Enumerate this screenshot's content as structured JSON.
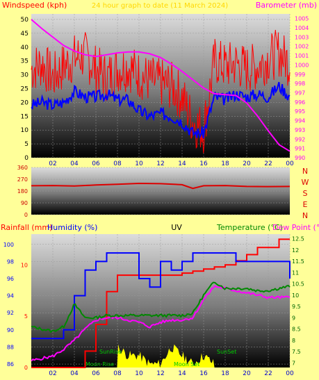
{
  "colors": {
    "background": "#ffff99",
    "wind_gust": "#ff0000",
    "wind_avg": "#0000ff",
    "barometer": "#ff00ff",
    "direction": "#dd0000",
    "rainfall": "#ff0000",
    "humidity": "#0000ff",
    "temperature": "#ff00ff",
    "dewpoint": "#008800",
    "uv": "#ffff00",
    "axis_text": "#0000cc"
  },
  "chart_data": [
    {
      "type": "line",
      "name": "wind-barometer",
      "title": "24 hour graph to date (11 March 2024)",
      "ylabel_left": "Windspeed (kph)",
      "ylabel_right": "Barometer (mb)",
      "x_ticks": [
        "02",
        "04",
        "06",
        "08",
        "10",
        "12",
        "14",
        "16",
        "18",
        "20",
        "22",
        "00"
      ],
      "y_left_ticks": [
        0,
        5,
        10,
        15,
        20,
        25,
        30,
        35,
        40,
        45,
        50
      ],
      "y_left_range": [
        0,
        52
      ],
      "y_right_ticks": [
        990,
        991,
        992,
        993,
        994,
        995,
        996,
        997,
        998,
        999,
        1000,
        1001,
        1002,
        1003,
        1004,
        1005
      ],
      "y_right_range": [
        990,
        1005.5
      ],
      "x_hours": [
        0,
        1,
        2,
        3,
        4,
        5,
        6,
        7,
        8,
        9,
        10,
        11,
        12,
        13,
        14,
        15,
        16,
        17,
        18,
        19,
        20,
        21,
        22,
        23,
        24
      ],
      "series": [
        {
          "key": "gust",
          "axis": "left",
          "values": [
            32,
            34,
            29,
            33,
            36,
            37,
            32,
            29,
            32,
            33,
            30,
            28,
            27,
            26,
            22,
            13,
            10,
            35,
            33,
            34,
            32,
            33,
            36,
            38,
            34
          ]
        },
        {
          "key": "avg",
          "axis": "left",
          "values": [
            19,
            20,
            19,
            20,
            24,
            22,
            22,
            23,
            21,
            21,
            17,
            15,
            16,
            15,
            13,
            9,
            9,
            22,
            21,
            23,
            22,
            23,
            22,
            26,
            22
          ]
        },
        {
          "key": "barometer",
          "axis": "right",
          "values": [
            1004.9,
            1003.9,
            1003.0,
            1002.1,
            1001.5,
            1001.1,
            1000.9,
            1001.1,
            1001.3,
            1001.4,
            1001.4,
            1001.2,
            1000.8,
            1000.1,
            999.3,
            998.4,
            997.5,
            996.9,
            996.8,
            996.7,
            995.9,
            994.5,
            992.9,
            991.4,
            990.7
          ]
        }
      ]
    },
    {
      "type": "line",
      "name": "wind-direction",
      "y_ticks": [
        0,
        90,
        180,
        270,
        360
      ],
      "y_range": [
        0,
        360
      ],
      "compass_labels": [
        "N",
        "W",
        "S",
        "E",
        "N"
      ],
      "x_hours": [
        0,
        2,
        4,
        6,
        8,
        10,
        12,
        14,
        15,
        16,
        18,
        20,
        22,
        24
      ],
      "series": [
        {
          "key": "direction",
          "values": [
            220,
            222,
            218,
            226,
            232,
            238,
            236,
            228,
            200,
            220,
            222,
            215,
            214,
            215
          ]
        }
      ]
    },
    {
      "type": "line",
      "name": "rain-humidity-temperature",
      "labels": {
        "rainfall": "Rainfall (mm)",
        "humidity": "Humidity (%)",
        "uv": "UV",
        "temperature": "Temperature (°C)",
        "dewpoint": "Dew Point (°C)",
        "sunrise": "SunRise",
        "sunset": "SunSet",
        "moonrise": "Moon Rise",
        "moonset": "Moon Set"
      },
      "x_ticks": [
        "02",
        "04",
        "06",
        "08",
        "10",
        "12",
        "14",
        "16",
        "18",
        "20",
        "22",
        "00"
      ],
      "rain_ticks": [
        0,
        5,
        10
      ],
      "rain_range": [
        0,
        13
      ],
      "humidity_ticks": [
        86,
        88,
        90,
        92,
        94,
        96,
        98,
        100
      ],
      "humidity_range": [
        85.6,
        101.2
      ],
      "temp_ticks": [
        7,
        7.5,
        8,
        8.5,
        9,
        9.5,
        10,
        10.5,
        11,
        11.5,
        12,
        12.5
      ],
      "temp_range": [
        6.8,
        12.7
      ],
      "x_hours": [
        0,
        1,
        2,
        3,
        4,
        5,
        6,
        7,
        8,
        9,
        10,
        11,
        12,
        13,
        14,
        15,
        16,
        17,
        18,
        19,
        20,
        21,
        22,
        23,
        24
      ],
      "series": [
        {
          "key": "rainfall",
          "axis": "rain",
          "values": [
            0,
            0,
            0,
            0,
            0,
            1.6,
            4.2,
            7.4,
            9.0,
            9.0,
            9.0,
            9.0,
            9.0,
            9.0,
            9.2,
            9.4,
            9.6,
            9.8,
            10.0,
            10.4,
            11.0,
            11.7,
            11.7,
            12.5,
            12.5
          ]
        },
        {
          "key": "humidity",
          "axis": "humidity",
          "values": [
            89,
            89,
            89,
            90,
            94,
            97,
            98,
            99,
            99,
            99,
            96,
            95,
            98,
            97,
            98,
            99,
            99,
            99,
            99,
            98,
            98,
            98,
            98,
            98,
            96
          ]
        },
        {
          "key": "temperature",
          "axis": "temp",
          "values": [
            7.1,
            7.2,
            7.3,
            7.6,
            8.0,
            8.5,
            8.9,
            9.0,
            9.0,
            8.9,
            8.8,
            8.6,
            8.8,
            8.9,
            8.9,
            9.0,
            9.8,
            10.4,
            10.3,
            10.2,
            10.1,
            10.0,
            9.9,
            9.9,
            9.9
          ]
        },
        {
          "key": "dewpoint",
          "axis": "temp",
          "values": [
            8.6,
            8.5,
            8.4,
            8.6,
            9.6,
            9.0,
            9.0,
            9.1,
            9.1,
            9.1,
            9.1,
            9.1,
            9.1,
            9.1,
            9.1,
            9.2,
            10.0,
            10.6,
            10.3,
            10.3,
            10.3,
            10.2,
            10.2,
            10.3,
            10.4
          ]
        },
        {
          "key": "uv",
          "axis": "humidity",
          "values": [
            0,
            0,
            0,
            0,
            0,
            0,
            0,
            0,
            88,
            87,
            87,
            86,
            86,
            88,
            87,
            86,
            87,
            86,
            0,
            0,
            0,
            0,
            0,
            0,
            0
          ]
        }
      ]
    }
  ]
}
